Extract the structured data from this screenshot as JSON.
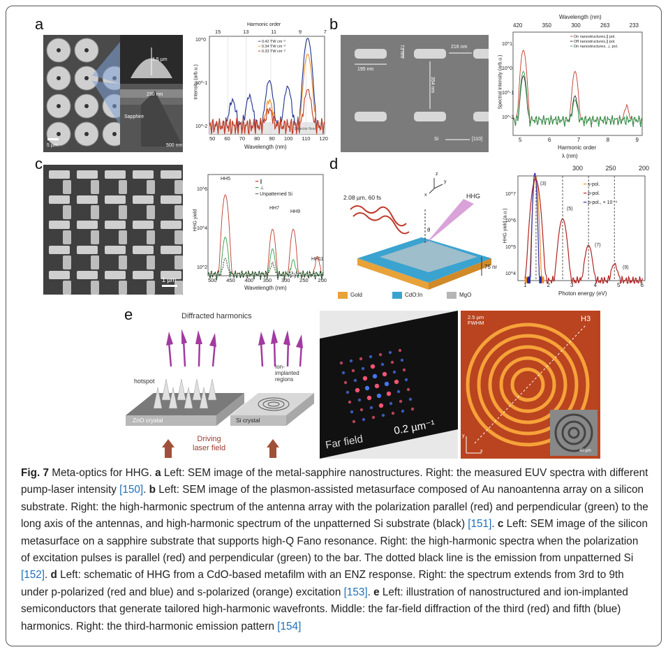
{
  "panels": {
    "a": {
      "letter": "a",
      "chart_data": {
        "type": "line",
        "xlabel": "Wavelength (nm)",
        "ylabel": "Intensity (arb.u.)",
        "top_axis_label": "Harmonic order",
        "top_ticks": [
          "15",
          "13",
          "11",
          "9",
          "7"
        ],
        "x_ticks": [
          "50",
          "60",
          "70",
          "80",
          "90",
          "100",
          "110",
          "120"
        ],
        "y_ticks": [
          "10^0",
          "10^-1",
          "10^-2"
        ],
        "xlim": [
          50,
          125
        ],
        "legend": [
          "0.42 TW cm⁻²",
          "0.34 TW cm⁻²",
          "0.33 TW cm⁻²"
        ],
        "series_colors": [
          "#1d2f8c",
          "#f08c1e",
          "#c0392b"
        ],
        "peaks": [
          {
            "name": "0.42 TW cm⁻²",
            "x": [
              65,
              76,
              89,
              101,
              114
            ],
            "y": [
              0.03,
              0.04,
              0.1,
              0.07,
              0.9
            ]
          },
          {
            "name": "0.34 TW cm⁻²",
            "x": [
              89,
              114
            ],
            "y": [
              0.03,
              0.4
            ]
          },
          {
            "name": "0.33 TW cm⁻²",
            "x": [
              89,
              114
            ],
            "y": [
              0.015,
              0.06
            ]
          }
        ],
        "annotation": "Detector floor"
      },
      "sem_labels": [
        "1.5 µm",
        "Sapphire",
        "230 nm",
        "500 nm",
        "5 µm"
      ]
    },
    "b": {
      "letter": "b",
      "sem_labels": [
        "73 nm",
        "216 nm",
        "195 nm",
        "354 nm",
        "Si",
        "[110]"
      ],
      "chart_data": {
        "type": "line",
        "xlabel": "Harmonic order",
        "ylabel": "Spectral intensity (arb.u.)",
        "top_axis_label": "Wavelength (nm)",
        "top_ticks": [
          "420",
          "350",
          "300",
          "263",
          "233"
        ],
        "x_ticks": [
          "5",
          "6",
          "7",
          "8",
          "9"
        ],
        "y_ticks": [
          "10^1",
          "10^0",
          "10^-1",
          "10^-2",
          "10^-3"
        ],
        "legend": [
          "On nanostructures,∥ pol.",
          "Off nanostructures,∥ pol.",
          "On nanostructures, ⊥ pol."
        ],
        "series_colors": [
          "#c0392b",
          "#222222",
          "#2e9e4a"
        ],
        "peaks": [
          {
            "name": "On nanostructures,∥ pol.",
            "x": [
              5,
              7,
              9
            ],
            "y": [
              2,
              0.3,
              0.01
            ]
          },
          {
            "name": "Off nanostructures,∥ pol.",
            "x": [
              5,
              7
            ],
            "y": [
              0.2,
              0.03
            ]
          },
          {
            "name": "On nanostructures, ⊥ pol.",
            "x": [
              5,
              7
            ],
            "y": [
              0.3,
              0.02
            ]
          }
        ]
      }
    },
    "c": {
      "letter": "c",
      "sem_labels": [
        "1 µm"
      ],
      "chart_data": {
        "type": "line",
        "xlabel": "Wavelength (nm)",
        "ylabel": "HHG yield",
        "x_ticks": [
          "500",
          "450",
          "400",
          "350",
          "300",
          "250",
          "200"
        ],
        "y_ticks": [
          "10^6",
          "10^4",
          "10^2"
        ],
        "legend": [
          "∥",
          "⊥",
          "Unpatterned Si"
        ],
        "series_colors": [
          "#c0392b",
          "#2e9e4a",
          "#222222"
        ],
        "peak_labels": [
          "HH5",
          "HH7",
          "HH9",
          "HH11"
        ]
      }
    },
    "d": {
      "letter": "d",
      "schematic": {
        "pulse_label": "2.08 µm, 60 fs",
        "hhg_label": "HHG",
        "theta": "θ",
        "thickness": "75 nm",
        "axes": [
          "z",
          "y",
          "x"
        ],
        "legend": [
          {
            "label": "Gold",
            "color": "#e8a23a"
          },
          {
            "label": "CdO:In",
            "color": "#3ba3d0"
          },
          {
            "label": "MgO",
            "color": "#b5b5b5"
          }
        ]
      },
      "chart_data": {
        "type": "line",
        "xlabel": "Photon energy (eV)",
        "ylabel": "HHG yield (a.u.)",
        "top_axis_label": "λ (nm)",
        "top_ticks": [
          "300",
          "250",
          "200"
        ],
        "x_ticks": [
          "1",
          "2",
          "3",
          "4",
          "5",
          "6"
        ],
        "y_ticks": [
          "10^7",
          "10^6",
          "10^5",
          "10^4"
        ],
        "legend": [
          "s-pol.",
          "p-pol.",
          "p-pol., × 10⁻⁴"
        ],
        "series_colors": [
          "#f08c1e",
          "#b22222",
          "#2a2aa0"
        ],
        "peak_labels": [
          "(3)",
          "(5)",
          "(7)",
          "(9)"
        ]
      }
    },
    "e": {
      "letter": "e",
      "illustration": {
        "title": "Diffracted harmonics",
        "hotspot": "hotspot",
        "ion_regions": "Ion-\nimplanted\nregions",
        "zno": "ZnO crystal",
        "si": "Si crystal",
        "driving": "Driving\nlaser field"
      },
      "farfield": {
        "scale": "0.2 µm⁻¹",
        "label": "Far field"
      },
      "pattern": {
        "fwhm": "2.5 µm\nFWHM",
        "h3": "H3",
        "scale": "40 µm",
        "x": "x",
        "y": "y"
      }
    }
  },
  "caption": {
    "fig": "Fig. 7",
    "title": " Meta-optics for HHG. ",
    "a_letter": "a",
    "a_text": " Left: SEM image of the metal-sapphire nanostructures. Right: the measured EUV spectra with different pump-laser intensity ",
    "a_ref": "[150]",
    "b_letter": "b",
    "b_text": " Left: SEM image of the plasmon-assisted metasurface composed of Au nanoantenna array on a silicon substrate. Right: the high-harmonic spectrum of the antenna array with the polarization parallel (red) and perpendicular (green) to the long axis of the antennas, and high-harmonic spectrum of the unpatterned Si substrate (black) ",
    "b_ref": "[151]",
    "c_letter": "c",
    "c_text": " Left: SEM image of the silicon metasurface on a sapphire substrate that supports high-Q Fano resonance. Right: the high-harmonic spectra when the polarization of excitation pulses is parallel (red) and perpendicular (green) to the bar. The dotted black line is the emission from unpatterned Si ",
    "c_ref": "[152]",
    "d_letter": "d",
    "d_text": " Left: schematic of HHG from a CdO-based metafilm with an ENZ response. Right: the spectrum extends from 3rd to 9th under p-polarized (red and blue) and s-polarized (orange) excitation ",
    "d_ref": "[153]",
    "e_letter": "e",
    "e_text": " Left: illustration of nanostructured and ion-implanted semiconductors that generate tailored high-harmonic wavefronts. Middle: the far-field diffraction of the third (red) and fifth (blue) harmonics. Right: the third-harmonic emission pattern ",
    "e_ref": "[154]"
  }
}
